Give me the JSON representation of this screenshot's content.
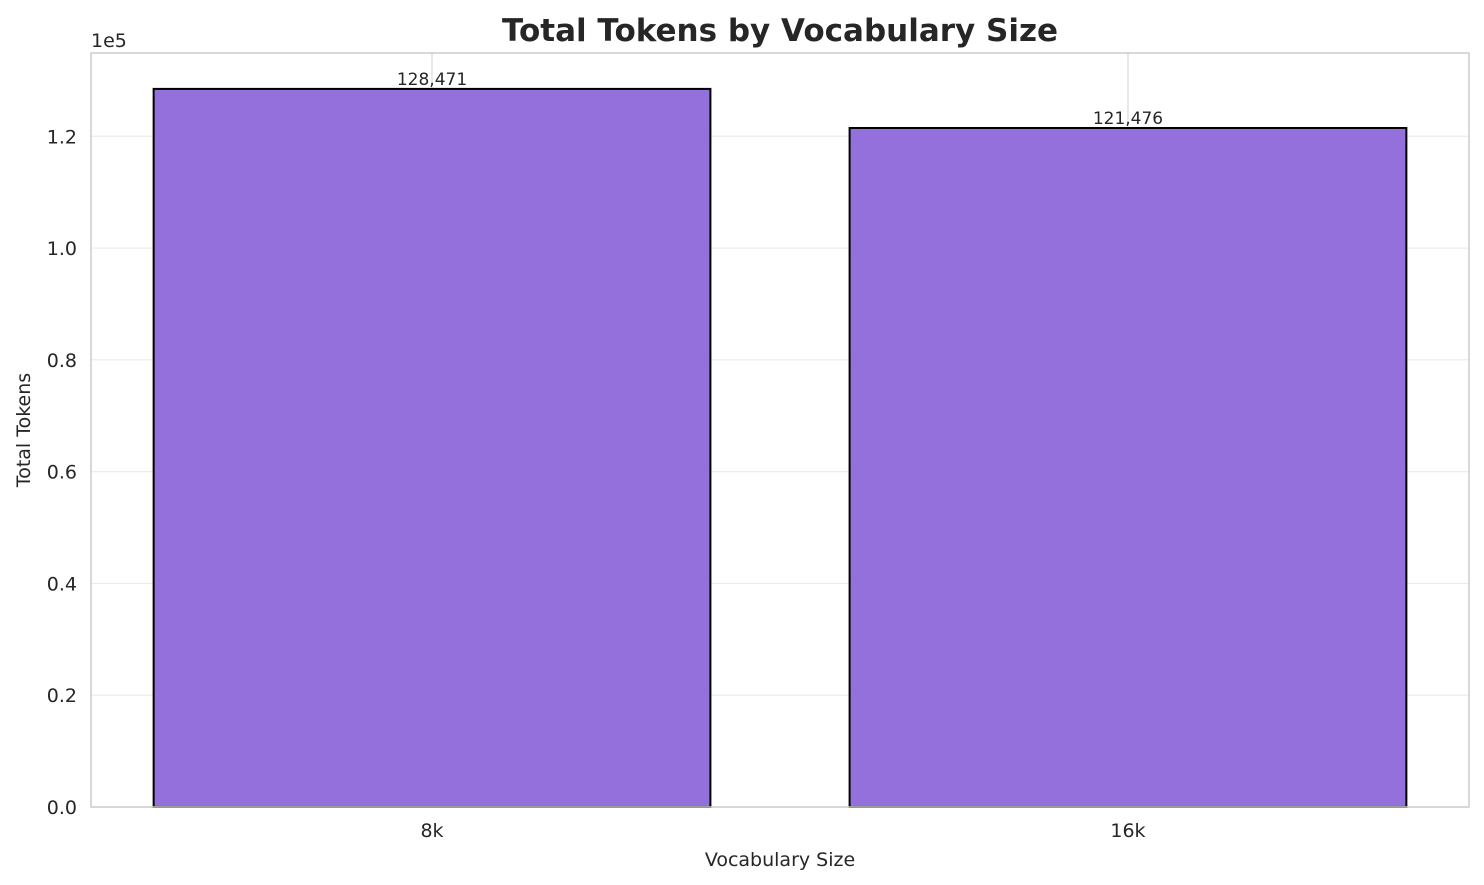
{
  "chart_data": {
    "type": "bar",
    "title": "Total Tokens by Vocabulary Size",
    "xlabel": "Vocabulary Size",
    "ylabel": "Total Tokens",
    "categories": [
      "8k",
      "16k"
    ],
    "values": [
      128471,
      121476
    ],
    "data_labels": [
      "128,471",
      "121,476"
    ],
    "ylim": [
      0,
      134894.55
    ],
    "yticks": [
      0,
      20000,
      40000,
      60000,
      80000,
      100000,
      120000
    ],
    "ytick_labels": [
      "0.0",
      "0.2",
      "0.4",
      "0.6",
      "0.8",
      "1.0",
      "1.2"
    ],
    "y_offset_label": "1e5",
    "grid": true,
    "bar_color": "#9370DB",
    "edge_color": "#000000"
  }
}
